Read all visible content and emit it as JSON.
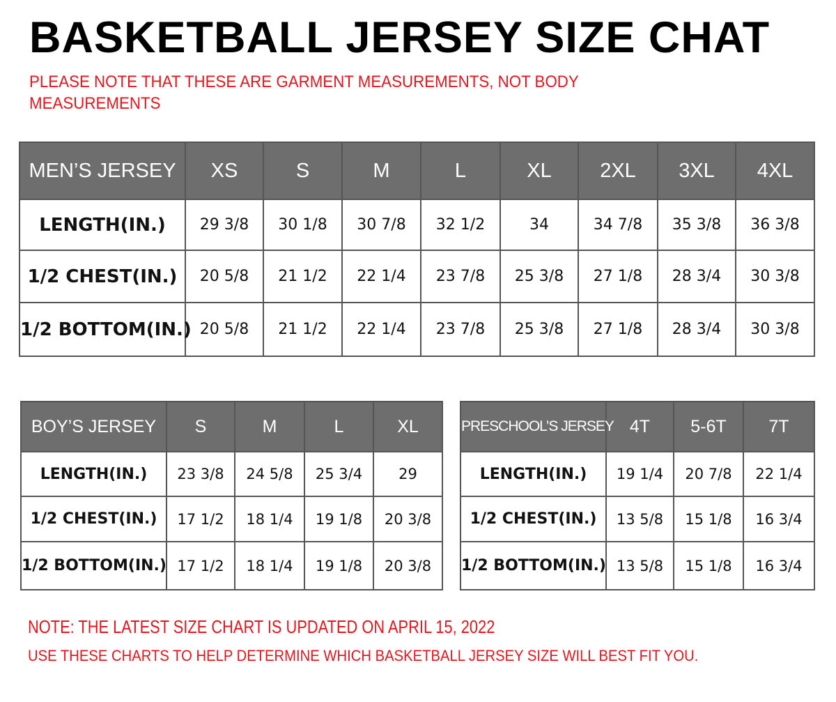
{
  "title": "BASKETBALL JERSEY SIZE CHAT",
  "notes": {
    "top_line1": "PLEASE NOTE THAT THESE ARE GARMENT MEASUREMENTS, NOT BODY",
    "top_line2": "MEASUREMENTS",
    "bottom_line1": "NOTE: THE LATEST SIZE CHART IS UPDATED ON APRIL 15, 2022",
    "bottom_line2": "USE THESE CHARTS TO HELP DETERMINE WHICH  BASKETBALL JERSEY  SIZE WILL BEST FIT YOU."
  },
  "colors": {
    "header_bg": "#6e6e6e",
    "note_red": "#e8141b"
  },
  "mens": {
    "header": [
      "MEN’S JERSEY",
      "XS",
      "S",
      "M",
      "L",
      "XL",
      "2XL",
      "3XL",
      "4XL"
    ],
    "rows": [
      [
        "LENGTH(IN.)",
        "29  3/8",
        "30  1/8",
        "30  7/8",
        "32  1/2",
        "34",
        "34  7/8",
        "35  3/8",
        "36  3/8"
      ],
      [
        "1/2  CHEST(IN.)",
        "20  5/8",
        "21  1/2",
        "22  1/4",
        "23  7/8",
        "25  3/8",
        "27  1/8",
        "28  3/4",
        "30  3/8"
      ],
      [
        "1/2  BOTTOM(IN.)",
        "20  5/8",
        "21  1/2",
        "22  1/4",
        "23  7/8",
        "25  3/8",
        "27  1/8",
        "28  3/4",
        "30  3/8"
      ]
    ]
  },
  "boys": {
    "header": [
      "BOY’S JERSEY",
      "S",
      "M",
      "L",
      "XL"
    ],
    "rows": [
      [
        "LENGTH(IN.)",
        "23  3/8",
        "24  5/8",
        "25  3/4",
        "29"
      ],
      [
        "1/2  CHEST(IN.)",
        "17  1/2",
        "18  1/4",
        "19  1/8",
        "20  3/8"
      ],
      [
        "1/2  BOTTOM(IN.)",
        "17  1/2",
        "18  1/4",
        "19  1/8",
        "20  3/8"
      ]
    ]
  },
  "preschool": {
    "header": [
      "PRESCHOOL’S JERSEY",
      "4T",
      "5-6T",
      "7T"
    ],
    "rows": [
      [
        "LENGTH(IN.)",
        "19  1/4",
        "20  7/8",
        "22  1/4"
      ],
      [
        "1/2  CHEST(IN.)",
        "13  5/8",
        "15  1/8",
        "16  3/4"
      ],
      [
        "1/2  BOTTOM(IN.)",
        "13  5/8",
        "15  1/8",
        "16  3/4"
      ]
    ]
  }
}
